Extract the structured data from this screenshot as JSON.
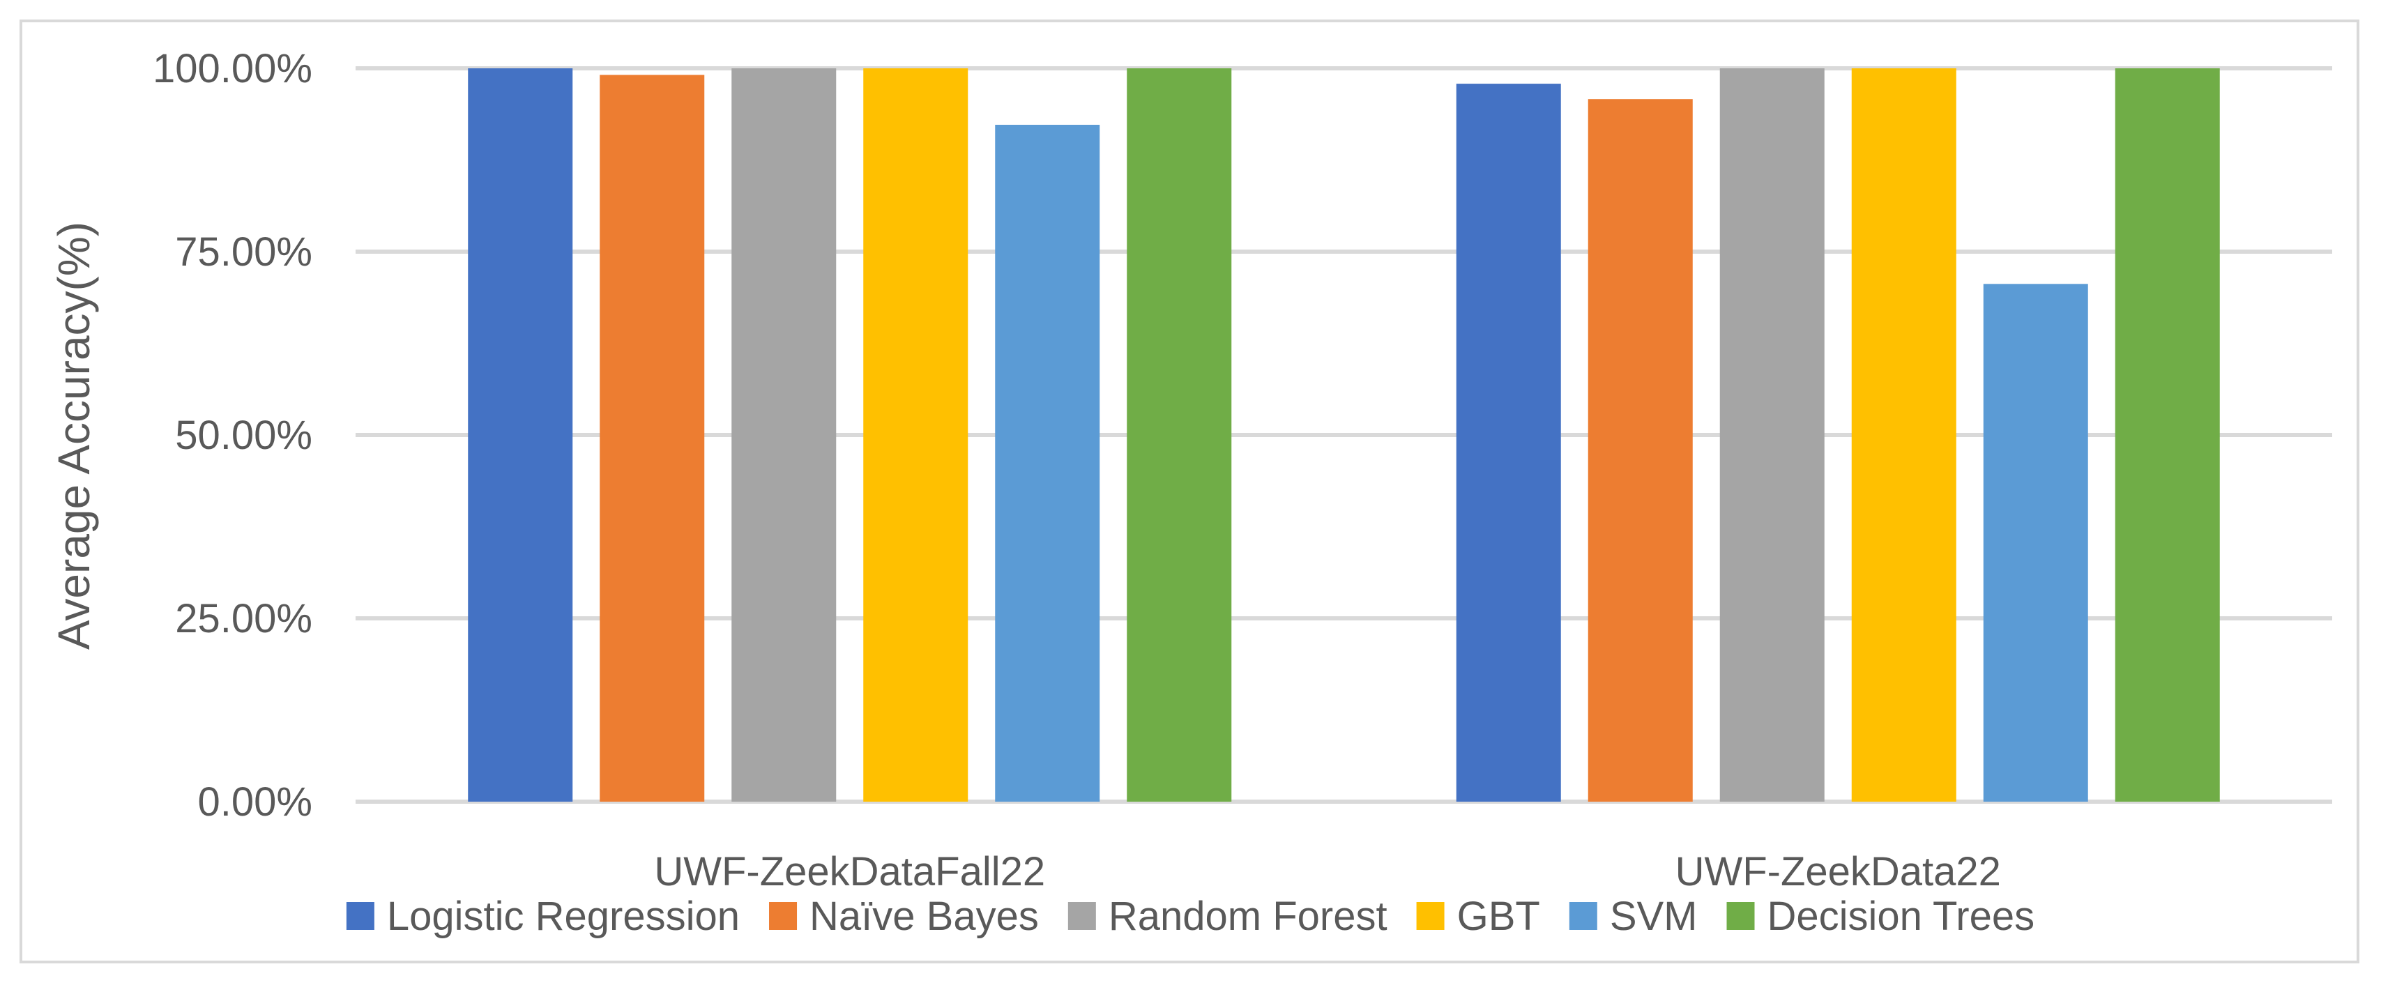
{
  "chart_data": {
    "type": "bar",
    "title": "",
    "xlabel": "",
    "ylabel": "Average Accuracy(%)",
    "ylim": [
      0,
      100
    ],
    "yticks": [
      0,
      25,
      50,
      75,
      100
    ],
    "ytick_labels": [
      "0.00%",
      "25.00%",
      "50.00%",
      "75.00%",
      "100.00%"
    ],
    "categories": [
      "UWF-ZeekDataFall22",
      "UWF-ZeekData22"
    ],
    "grid": true,
    "legend_position": "bottom",
    "series": [
      {
        "name": "Logistic Regression",
        "color": "#4472C4",
        "values": [
          100.0,
          97.9
        ]
      },
      {
        "name": "Naïve Bayes",
        "color": "#ED7D31",
        "values": [
          99.1,
          95.8
        ]
      },
      {
        "name": "Random Forest",
        "color": "#A5A5A5",
        "values": [
          100.0,
          100.0
        ]
      },
      {
        "name": "GBT",
        "color": "#FFC000",
        "values": [
          100.0,
          100.0
        ]
      },
      {
        "name": "SVM",
        "color": "#5B9BD5",
        "values": [
          92.3,
          70.6
        ]
      },
      {
        "name": "Decision Trees",
        "color": "#70AD47",
        "values": [
          100.0,
          100.0
        ]
      }
    ],
    "colors": {
      "gridline": "#d9d9d9",
      "text": "#595959",
      "border": "#d9d9d9"
    }
  }
}
